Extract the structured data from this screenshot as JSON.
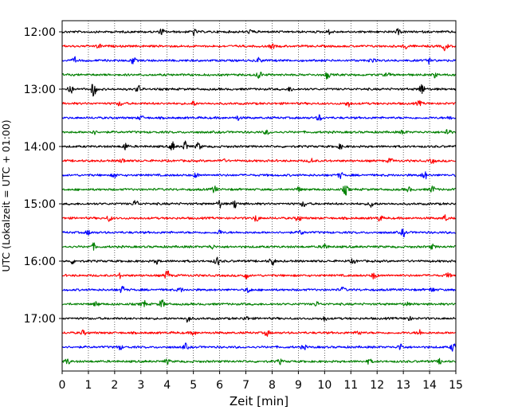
{
  "chart_data": {
    "type": "line",
    "title": "",
    "xlabel": "Zeit  [min]",
    "ylabel": "UTC (Lokalzeit = UTC + 01:00)",
    "xlim": [
      0,
      15
    ],
    "x_ticks": [
      0,
      1,
      2,
      3,
      4,
      5,
      6,
      7,
      8,
      9,
      10,
      11,
      12,
      13,
      14,
      15
    ],
    "x_tick_labels": [
      "0",
      "1",
      "2",
      "3",
      "4",
      "5",
      "6",
      "7",
      "8",
      "9",
      "10",
      "11",
      "12",
      "13",
      "14",
      "15"
    ],
    "y_ticks": [
      {
        "label": "12:00",
        "row": 0
      },
      {
        "label": "13:00",
        "row": 4
      },
      {
        "label": "14:00",
        "row": 8
      },
      {
        "label": "15:00",
        "row": 12
      },
      {
        "label": "16:00",
        "row": 16
      },
      {
        "label": "17:00",
        "row": 20
      }
    ],
    "grid": "vertical-dotted",
    "colors": [
      "#000000",
      "#ff0000",
      "#0000ff",
      "#008000"
    ],
    "traces": [
      {
        "start": "12:00",
        "color": "#000000",
        "events": [
          [
            3.8,
            0.4
          ],
          [
            5.0,
            0.5
          ],
          [
            7.2,
            0.3
          ],
          [
            10.2,
            0.3
          ],
          [
            12.8,
            0.3
          ]
        ]
      },
      {
        "start": "12:15",
        "color": "#ff0000",
        "events": [
          [
            1.4,
            0.3
          ],
          [
            8.0,
            0.3
          ],
          [
            13.1,
            0.4
          ],
          [
            14.6,
            0.6
          ]
        ]
      },
      {
        "start": "12:30",
        "color": "#0000ff",
        "events": [
          [
            0.5,
            0.4
          ],
          [
            2.7,
            0.5
          ],
          [
            7.5,
            0.4
          ],
          [
            11.8,
            0.3
          ],
          [
            14.0,
            0.4
          ]
        ]
      },
      {
        "start": "12:45",
        "color": "#008000",
        "events": [
          [
            7.5,
            0.6
          ],
          [
            10.1,
            0.5
          ],
          [
            12.4,
            0.3
          ],
          [
            14.2,
            0.3
          ]
        ]
      },
      {
        "start": "13:00",
        "color": "#000000",
        "events": [
          [
            0.3,
            0.7
          ],
          [
            1.2,
            1.0
          ],
          [
            2.9,
            0.5
          ],
          [
            8.7,
            0.3
          ],
          [
            13.7,
            0.8
          ]
        ]
      },
      {
        "start": "13:15",
        "color": "#ff0000",
        "events": [
          [
            2.2,
            0.3
          ],
          [
            5.0,
            0.3
          ],
          [
            10.9,
            0.4
          ],
          [
            13.6,
            0.3
          ]
        ]
      },
      {
        "start": "13:30",
        "color": "#0000ff",
        "events": [
          [
            3.0,
            0.3
          ],
          [
            6.7,
            0.3
          ],
          [
            9.8,
            0.4
          ],
          [
            14.8,
            0.3
          ]
        ]
      },
      {
        "start": "13:45",
        "color": "#008000",
        "events": [
          [
            1.2,
            0.3
          ],
          [
            7.8,
            0.3
          ],
          [
            13.0,
            0.3
          ],
          [
            14.7,
            0.6
          ]
        ]
      },
      {
        "start": "14:00",
        "color": "#000000",
        "events": [
          [
            2.4,
            0.5
          ],
          [
            4.2,
            0.6
          ],
          [
            4.7,
            0.7
          ],
          [
            5.2,
            0.5
          ],
          [
            10.6,
            0.3
          ]
        ]
      },
      {
        "start": "14:15",
        "color": "#ff0000",
        "events": [
          [
            2.3,
            0.3
          ],
          [
            6.1,
            0.3
          ],
          [
            9.5,
            0.3
          ],
          [
            12.5,
            0.3
          ],
          [
            14.1,
            0.3
          ]
        ]
      },
      {
        "start": "14:30",
        "color": "#0000ff",
        "events": [
          [
            2.0,
            0.3
          ],
          [
            5.1,
            0.3
          ],
          [
            10.6,
            0.4
          ],
          [
            13.8,
            0.6
          ]
        ]
      },
      {
        "start": "14:45",
        "color": "#008000",
        "events": [
          [
            5.8,
            0.5
          ],
          [
            9.0,
            0.3
          ],
          [
            10.8,
            0.7
          ],
          [
            13.2,
            0.3
          ],
          [
            14.1,
            0.5
          ]
        ]
      },
      {
        "start": "15:00",
        "color": "#000000",
        "events": [
          [
            2.8,
            0.5
          ],
          [
            6.0,
            0.5
          ],
          [
            6.6,
            0.6
          ],
          [
            9.2,
            0.4
          ],
          [
            11.8,
            0.5
          ]
        ]
      },
      {
        "start": "15:15",
        "color": "#ff0000",
        "events": [
          [
            1.8,
            0.4
          ],
          [
            7.4,
            0.5
          ],
          [
            9.0,
            0.5
          ],
          [
            12.1,
            0.4
          ],
          [
            14.6,
            0.4
          ]
        ]
      },
      {
        "start": "15:30",
        "color": "#0000ff",
        "events": [
          [
            1.0,
            0.3
          ],
          [
            6.0,
            0.3
          ],
          [
            9.1,
            0.3
          ],
          [
            13.0,
            0.5
          ]
        ]
      },
      {
        "start": "15:45",
        "color": "#008000",
        "events": [
          [
            1.2,
            0.4
          ],
          [
            5.7,
            0.3
          ],
          [
            10.0,
            0.5
          ],
          [
            14.1,
            0.3
          ]
        ]
      },
      {
        "start": "16:00",
        "color": "#000000",
        "events": [
          [
            0.4,
            0.3
          ],
          [
            3.6,
            0.3
          ],
          [
            5.9,
            0.6
          ],
          [
            8.0,
            0.6
          ],
          [
            11.1,
            0.3
          ]
        ]
      },
      {
        "start": "16:15",
        "color": "#ff0000",
        "events": [
          [
            2.2,
            0.3
          ],
          [
            4.0,
            0.7
          ],
          [
            7.0,
            0.4
          ],
          [
            11.9,
            0.5
          ],
          [
            14.7,
            0.3
          ]
        ]
      },
      {
        "start": "16:30",
        "color": "#0000ff",
        "events": [
          [
            2.3,
            0.5
          ],
          [
            4.5,
            0.3
          ],
          [
            7.1,
            0.4
          ],
          [
            10.7,
            0.3
          ],
          [
            14.1,
            0.3
          ]
        ]
      },
      {
        "start": "16:45",
        "color": "#008000",
        "events": [
          [
            1.3,
            0.3
          ],
          [
            3.1,
            0.5
          ],
          [
            3.8,
            0.6
          ],
          [
            9.7,
            0.3
          ],
          [
            13.1,
            0.3
          ]
        ]
      },
      {
        "start": "17:00",
        "color": "#000000",
        "events": [
          [
            4.8,
            0.5
          ],
          [
            7.0,
            0.3
          ],
          [
            10.0,
            0.3
          ],
          [
            13.2,
            0.3
          ]
        ]
      },
      {
        "start": "17:15",
        "color": "#ff0000",
        "events": [
          [
            0.8,
            0.3
          ],
          [
            5.0,
            0.3
          ],
          [
            7.8,
            0.4
          ],
          [
            11.3,
            0.3
          ],
          [
            13.6,
            0.4
          ]
        ]
      },
      {
        "start": "17:30",
        "color": "#0000ff",
        "events": [
          [
            2.2,
            0.3
          ],
          [
            4.7,
            0.4
          ],
          [
            9.2,
            0.3
          ],
          [
            12.9,
            0.5
          ],
          [
            14.9,
            0.6
          ]
        ]
      },
      {
        "start": "17:45",
        "color": "#008000",
        "events": [
          [
            0.2,
            0.4
          ],
          [
            4.0,
            0.3
          ],
          [
            8.3,
            0.3
          ],
          [
            11.7,
            0.3
          ],
          [
            14.4,
            0.3
          ]
        ]
      }
    ]
  }
}
